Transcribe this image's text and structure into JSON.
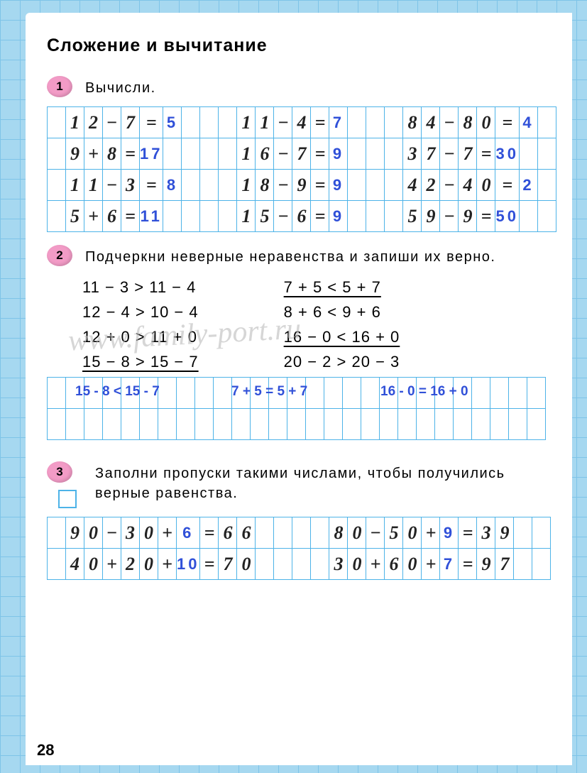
{
  "title": "Сложение  и  вычитание",
  "page_number": "28",
  "watermark": "www.family-port.ru",
  "colors": {
    "page_bg": "#ffffff",
    "outer_bg": "#a6d8f0",
    "grid_line": "#4db3e8",
    "badge": "#f29bc6",
    "handwriting": "#222222",
    "answer_blue": "#3050d8",
    "text": "#000000"
  },
  "task1": {
    "number": "1",
    "text": "Вычисли.",
    "rows": [
      [
        {
          "lhs": "12−7=",
          "ans": "5"
        },
        {
          "lhs": "11−4=",
          "ans": "7"
        },
        {
          "lhs": "84−80=",
          "ans": "4"
        }
      ],
      [
        {
          "lhs": "9+8=",
          "ans": "17"
        },
        {
          "lhs": "16−7=",
          "ans": "9"
        },
        {
          "lhs": "37−7=",
          "ans": "30"
        }
      ],
      [
        {
          "lhs": "11−3=",
          "ans": "8"
        },
        {
          "lhs": "18−9=",
          "ans": "9"
        },
        {
          "lhs": "42−40=",
          "ans": "2"
        }
      ],
      [
        {
          "lhs": "5+6=",
          "ans": "11"
        },
        {
          "lhs": "15−6=",
          "ans": "9"
        },
        {
          "lhs": "59−9=",
          "ans": "50"
        }
      ]
    ]
  },
  "task2": {
    "number": "2",
    "text": "Подчеркни неверные неравенства и запиши их верно.",
    "left": [
      {
        "t": "11 − 3 > 11 − 4",
        "u": false
      },
      {
        "t": "12 − 4 > 10 − 4",
        "u": false
      },
      {
        "t": "12 + 0 > 11 + 0",
        "u": false
      },
      {
        "t": "15 − 8 > 15 − 7",
        "u": true
      }
    ],
    "right": [
      {
        "t": "7 + 5 < 5 + 7",
        "u": true
      },
      {
        "t": "8 + 6 < 9 + 6",
        "u": false
      },
      {
        "t": "16 − 0 < 16 + 0",
        "u": true
      },
      {
        "t": "20 − 2 > 20 − 3",
        "u": false
      }
    ],
    "answers": [
      "15 - 8 < 15 - 7",
      "7 + 5 = 5 + 7",
      "16 - 0 = 16 + 0"
    ]
  },
  "task3": {
    "number": "3",
    "text": "Заполни пропуски такими числами, чтобы получились верные равенства.",
    "rows": [
      [
        {
          "pre": "90−30+",
          "ans": "6",
          "post": "=66"
        },
        {
          "pre": "80−50+",
          "ans": "9",
          "post": "=39"
        }
      ],
      [
        {
          "pre": "40+20+",
          "ans": "10",
          "post": "=70"
        },
        {
          "pre": "30+60+",
          "ans": "7",
          "post": "=97"
        }
      ]
    ]
  }
}
